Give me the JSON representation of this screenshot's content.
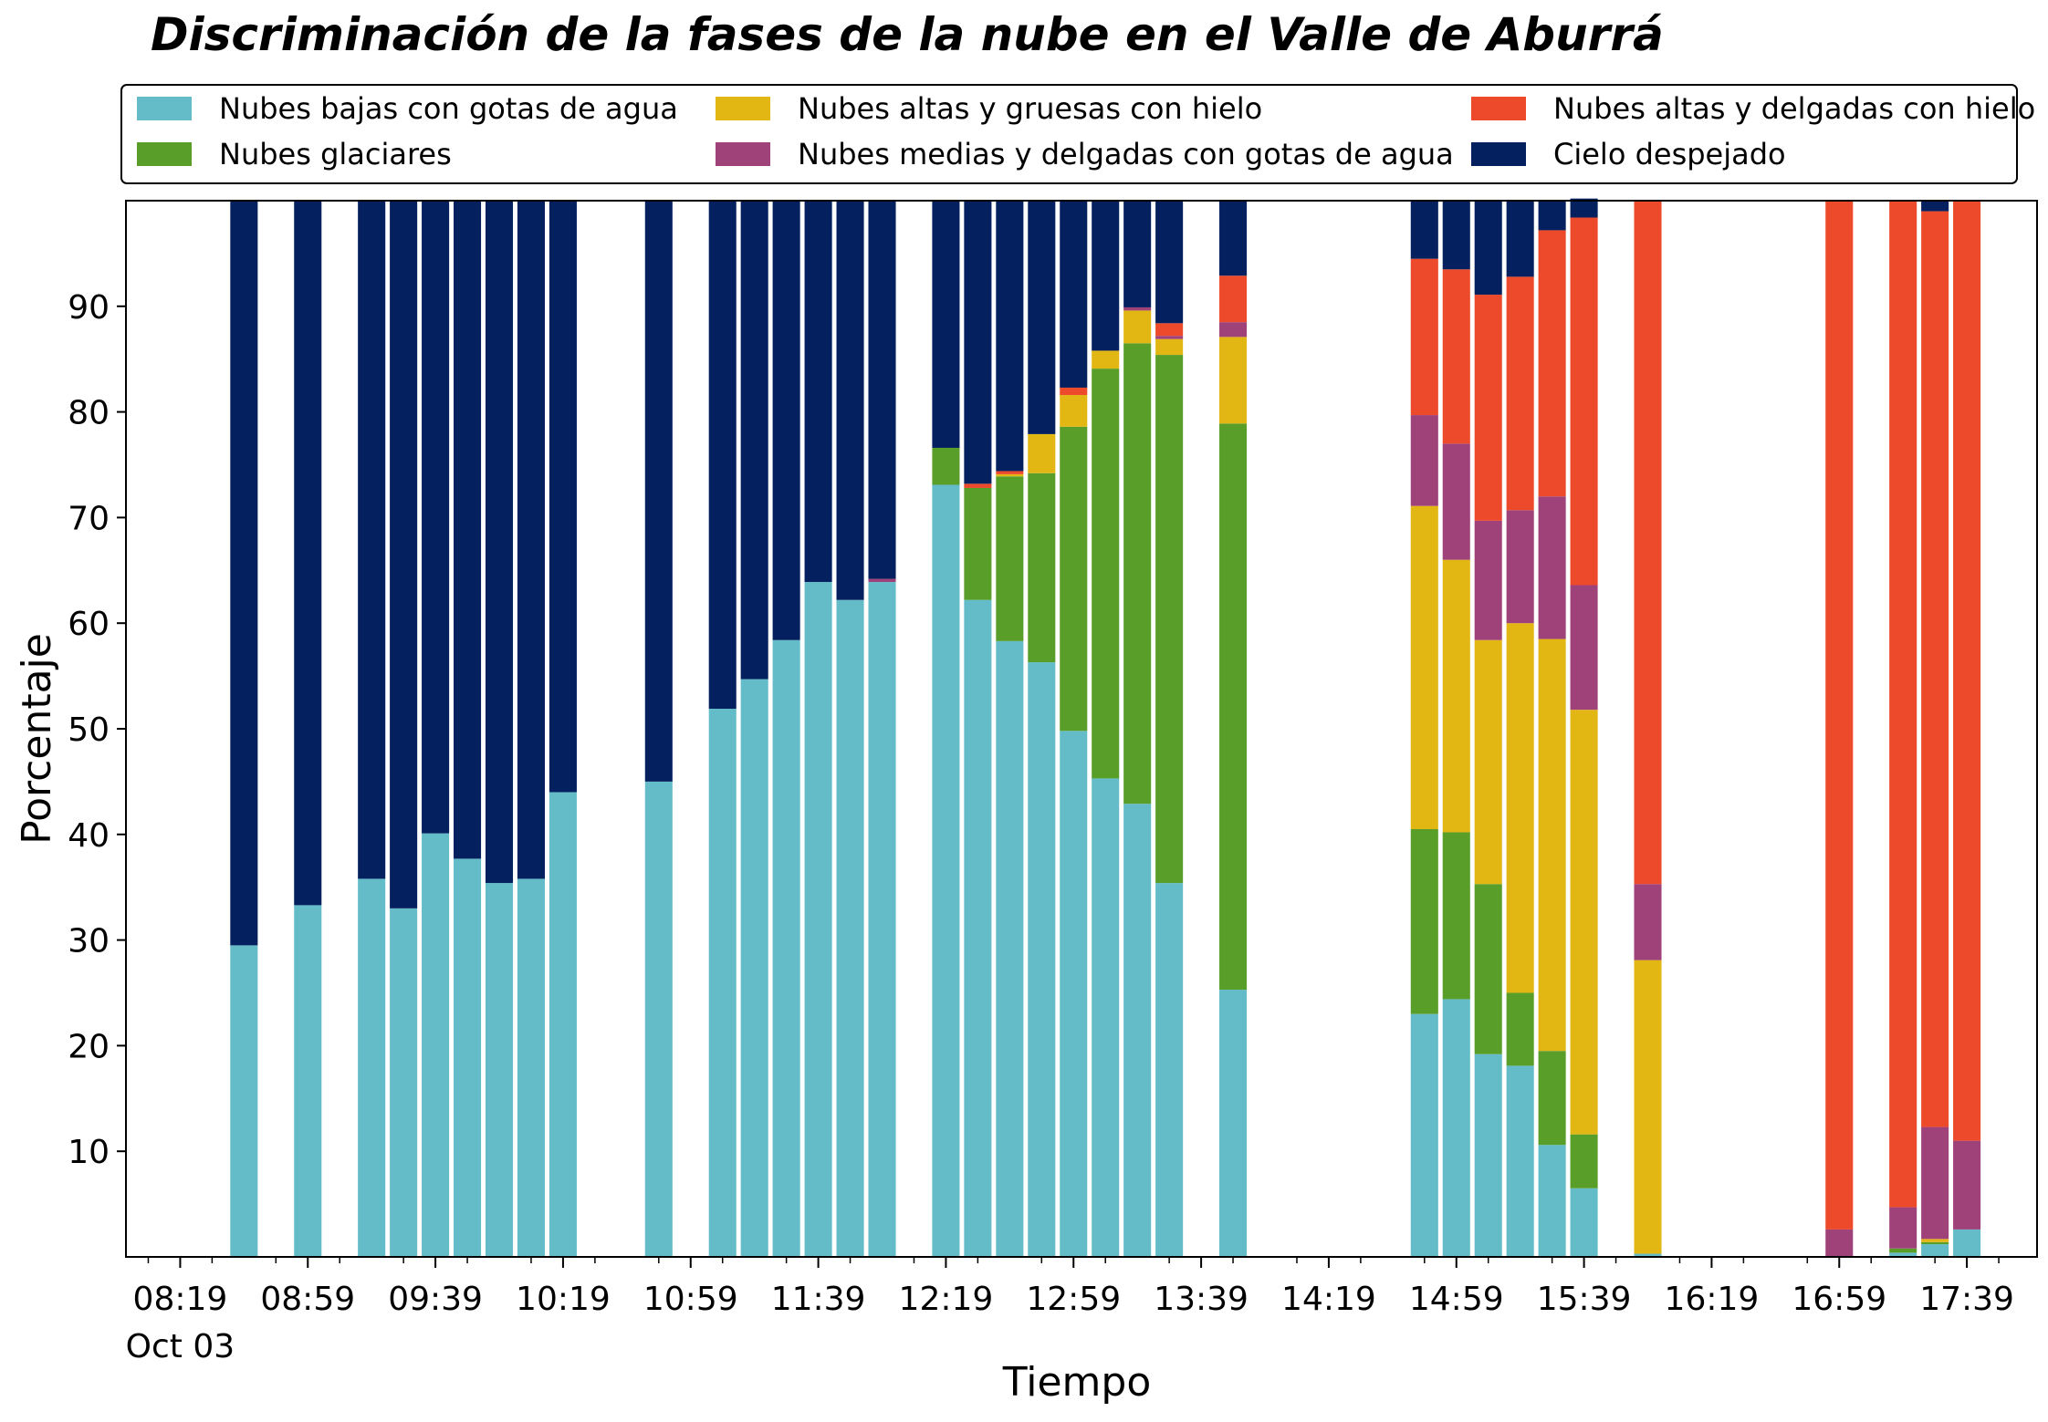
{
  "chart_data": {
    "type": "bar",
    "stacked": true,
    "title": "Discriminación de la fases de la nube en el Valle de Aburrá",
    "xlabel": "Tiempo",
    "ylabel": "Porcentaje",
    "ylim": [
      0,
      100
    ],
    "yticks": [
      10,
      20,
      30,
      40,
      50,
      60,
      70,
      80,
      90
    ],
    "xticks": [
      "08:19",
      "08:59",
      "09:39",
      "10:19",
      "10:59",
      "11:39",
      "12:19",
      "12:59",
      "13:39",
      "14:19",
      "14:59",
      "15:39",
      "16:19",
      "16:59",
      "17:39"
    ],
    "xtick_sublabel": "Oct 03",
    "legend_position": "top",
    "grid": false,
    "x": [
      "08:39",
      "08:49",
      "08:59",
      "09:09",
      "09:19",
      "09:29",
      "09:39",
      "09:49",
      "09:59",
      "10:09",
      "10:19",
      "10:29",
      "10:39",
      "10:49",
      "10:59",
      "11:09",
      "11:19",
      "11:29",
      "11:39",
      "11:49",
      "11:59",
      "12:09",
      "12:19",
      "12:29",
      "12:39",
      "12:49",
      "12:59",
      "13:09",
      "13:19",
      "13:29",
      "13:39",
      "13:49",
      "13:59",
      "14:09",
      "14:19",
      "14:29",
      "14:39",
      "14:49",
      "14:59",
      "15:09",
      "15:19",
      "15:29",
      "15:39",
      "15:49",
      "15:59",
      "16:09",
      "16:19",
      "16:29",
      "16:39",
      "16:49",
      "16:59",
      "17:09",
      "17:19",
      "17:29",
      "17:39"
    ],
    "series": [
      {
        "name": "Nubes bajas con gotas de agua",
        "color": "#64BCC9",
        "values": [
          29.5,
          0,
          33.3,
          0,
          35.8,
          33.0,
          40.1,
          37.7,
          35.4,
          35.8,
          44.0,
          0,
          0,
          45.0,
          0,
          51.9,
          54.7,
          58.4,
          63.9,
          62.2,
          63.9,
          0,
          73.1,
          62.2,
          58.3,
          56.3,
          49.8,
          45.3,
          42.9,
          35.4,
          0,
          25.3,
          0,
          0,
          0,
          0,
          0,
          23.0,
          24.4,
          19.2,
          18.1,
          10.6,
          6.5,
          0,
          0.3,
          0,
          0,
          0,
          0,
          0,
          0,
          0,
          0.4,
          1.2,
          2.6
        ]
      },
      {
        "name": "Nubes glaciares",
        "color": "#5A9E2A",
        "values": [
          0,
          0,
          0,
          0,
          0,
          0,
          0,
          0,
          0,
          0,
          0,
          0,
          0,
          0,
          0,
          0,
          0,
          0,
          0,
          0,
          0,
          0,
          3.5,
          10.6,
          15.6,
          17.9,
          28.8,
          38.8,
          43.6,
          50.0,
          0,
          53.6,
          0,
          0,
          0,
          0,
          0,
          17.5,
          15.8,
          16.1,
          6.9,
          8.9,
          5.1,
          0,
          0,
          0,
          0,
          0,
          0,
          0,
          0,
          0,
          0.4,
          0.2,
          0
        ]
      },
      {
        "name": "Nubes altas y gruesas con hielo",
        "color": "#E2B714",
        "values": [
          0,
          0,
          0,
          0,
          0,
          0,
          0,
          0,
          0,
          0,
          0,
          0,
          0,
          0,
          0,
          0,
          0,
          0,
          0,
          0,
          0,
          0,
          0,
          0,
          0.2,
          3.7,
          3.0,
          1.7,
          3.1,
          1.5,
          0,
          8.2,
          0,
          0,
          0,
          0,
          0,
          30.6,
          25.8,
          23.1,
          35.0,
          39.0,
          40.2,
          0,
          27.8,
          0,
          0,
          0,
          0,
          0,
          0,
          0,
          0,
          0.3,
          0
        ]
      },
      {
        "name": "Nubes medias y delgadas con gotas de agua",
        "color": "#A0427A",
        "values": [
          0,
          0,
          0,
          0,
          0,
          0,
          0,
          0,
          0,
          0,
          0,
          0,
          0,
          0,
          0,
          0,
          0,
          0,
          0,
          0,
          0.3,
          0,
          0,
          0,
          0,
          0,
          0,
          0,
          0.3,
          0.3,
          0,
          1.4,
          0,
          0,
          0,
          0,
          0,
          8.6,
          11.0,
          11.3,
          10.7,
          13.5,
          11.8,
          0,
          7.2,
          0,
          0,
          0,
          0,
          0,
          2.6,
          0,
          3.9,
          10.6,
          8.4
        ]
      },
      {
        "name": "Nubes altas y delgadas con hielo",
        "color": "#EC4A2A",
        "values": [
          0,
          0,
          0,
          0,
          0,
          0,
          0,
          0,
          0,
          0,
          0,
          0,
          0,
          0,
          0,
          0,
          0,
          0,
          0,
          0,
          0,
          0,
          0,
          0.4,
          0.3,
          0,
          0.7,
          0,
          0,
          1.2,
          0,
          4.4,
          0,
          0,
          0,
          0,
          0,
          14.8,
          16.5,
          21.4,
          22.1,
          25.2,
          34.8,
          0,
          64.7,
          0,
          0,
          0,
          0,
          0,
          97.4,
          0,
          95.3,
          86.7,
          89.0
        ]
      },
      {
        "name": "Cielo despejado",
        "color": "#04205E",
        "values": [
          70.5,
          0,
          66.7,
          0,
          64.2,
          67.0,
          59.9,
          62.3,
          64.6,
          64.2,
          56.0,
          0,
          0,
          55.0,
          0,
          48.1,
          45.3,
          41.6,
          36.1,
          37.8,
          35.8,
          0,
          23.4,
          26.8,
          25.6,
          22.1,
          17.7,
          14.2,
          10.1,
          11.6,
          0,
          7.1,
          0,
          0,
          0,
          0,
          0,
          5.5,
          6.5,
          8.9,
          7.2,
          2.8,
          1.8,
          0,
          0,
          0,
          0,
          0,
          0,
          0,
          0,
          0,
          0,
          1.0,
          0
        ]
      }
    ]
  }
}
